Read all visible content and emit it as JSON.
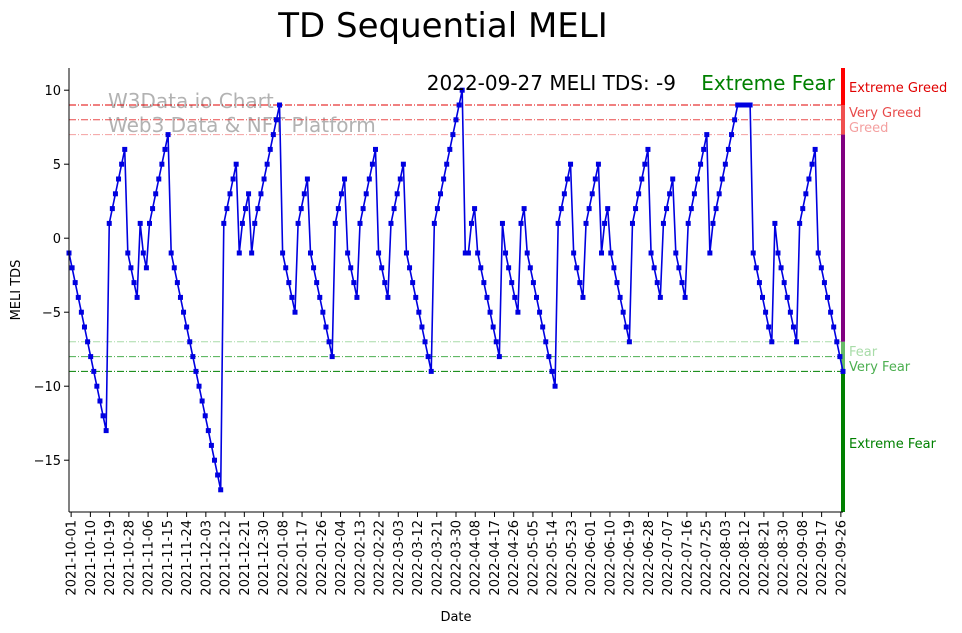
{
  "chart_data": {
    "type": "line",
    "title": "TD Sequential MELI",
    "xlabel": "Date",
    "ylabel": "MELI TDS",
    "ylim": [
      -18.5,
      11.5
    ],
    "yticks": [
      10,
      5,
      0,
      -5,
      -10,
      -15
    ],
    "ytick_labels": [
      "10",
      "5",
      "0",
      "−5",
      "−10",
      "−15"
    ],
    "xlim": [
      "2021-09-30",
      "2022-09-27"
    ],
    "xtick_labels": [
      "2021-10-01",
      "2021-10-10",
      "2021-10-19",
      "2021-10-28",
      "2021-11-06",
      "2021-11-15",
      "2021-11-24",
      "2021-12-03",
      "2021-12-12",
      "2021-12-21",
      "2021-12-30",
      "2022-01-08",
      "2022-01-17",
      "2022-01-26",
      "2022-02-04",
      "2022-02-13",
      "2022-02-22",
      "2022-03-03",
      "2022-03-12",
      "2022-03-21",
      "2022-03-30",
      "2022-04-08",
      "2022-04-17",
      "2022-04-26",
      "2022-05-05",
      "2022-05-14",
      "2022-05-23",
      "2022-06-01",
      "2022-06-10",
      "2022-06-19",
      "2022-06-28",
      "2022-07-07",
      "2022-07-16",
      "2022-07-25",
      "2022-08-03",
      "2022-08-12",
      "2022-08-21",
      "2022-08-30",
      "2022-09-08",
      "2022-09-17",
      "2022-09-26"
    ],
    "annotation": "2022-09-27 MELI TDS: -9",
    "annotation_status": "Extreme Fear",
    "watermark": [
      "W3Data.io Chart",
      "Web3 Data & NFT Platform"
    ],
    "thresholds": [
      {
        "label": "Extreme Greed",
        "value": 9,
        "color": "#e00000"
      },
      {
        "label": "Very Greed",
        "value": 8,
        "color": "#e84a4a"
      },
      {
        "label": "Greed",
        "value": 7,
        "color": "#f4a0a0"
      },
      {
        "label": "Fear",
        "value": -7,
        "color": "#a8dca8"
      },
      {
        "label": "Very Fear",
        "value": -8,
        "color": "#4caf50"
      },
      {
        "label": "Extreme Fear",
        "value": -9,
        "color": "#008000"
      }
    ],
    "series": [
      {
        "color": "#0000e0",
        "values": [
          -1,
          -2,
          -3,
          -4,
          -5,
          -6,
          -7,
          -8,
          -9,
          -10,
          -11,
          -12,
          -13,
          1,
          2,
          3,
          4,
          5,
          6,
          -1,
          -2,
          -3,
          -4,
          1,
          -1,
          -2,
          1,
          2,
          3,
          4,
          5,
          6,
          7,
          -1,
          -2,
          -3,
          -4,
          -5,
          -6,
          -7,
          -8,
          -9,
          -10,
          -11,
          -12,
          -13,
          -14,
          -15,
          -16,
          -17,
          1,
          2,
          3,
          4,
          5,
          -1,
          1,
          2,
          3,
          -1,
          1,
          2,
          3,
          4,
          5,
          6,
          7,
          8,
          9,
          -1,
          -2,
          -3,
          -4,
          -5,
          1,
          2,
          3,
          4,
          -1,
          -2,
          -3,
          -4,
          -5,
          -6,
          -7,
          -8,
          1,
          2,
          3,
          4,
          -1,
          -2,
          -3,
          -4,
          1,
          2,
          3,
          4,
          5,
          6,
          -1,
          -2,
          -3,
          -4,
          1,
          2,
          3,
          4,
          5,
          -1,
          -2,
          -3,
          -4,
          -5,
          -6,
          -7,
          -8,
          -9,
          1,
          2,
          3,
          4,
          5,
          6,
          7,
          8,
          9,
          10,
          -1,
          -1,
          1,
          2,
          -1,
          -2,
          -3,
          -4,
          -5,
          -6,
          -7,
          -8,
          1,
          -1,
          -2,
          -3,
          -4,
          -5,
          1,
          2,
          -1,
          -2,
          -3,
          -4,
          -5,
          -6,
          -7,
          -8,
          -9,
          -10,
          1,
          2,
          3,
          4,
          5,
          -1,
          -2,
          -3,
          -4,
          1,
          2,
          3,
          4,
          5,
          -1,
          1,
          2,
          -1,
          -2,
          -3,
          -4,
          -5,
          -6,
          -7,
          1,
          2,
          3,
          4,
          5,
          6,
          -1,
          -2,
          -3,
          -4,
          1,
          2,
          3,
          4,
          -1,
          -2,
          -3,
          -4,
          1,
          2,
          3,
          4,
          5,
          6,
          7,
          -1,
          1,
          2,
          3,
          4,
          5,
          6,
          7,
          8,
          9,
          9,
          9,
          9,
          9,
          -1,
          -2,
          -3,
          -4,
          -5,
          -6,
          -7,
          1,
          -1,
          -2,
          -3,
          -4,
          -5,
          -6,
          -7,
          1,
          2,
          3,
          4,
          5,
          6,
          -1,
          -2,
          -3,
          -4,
          -5,
          -6,
          -7,
          -8,
          -9
        ]
      }
    ]
  }
}
